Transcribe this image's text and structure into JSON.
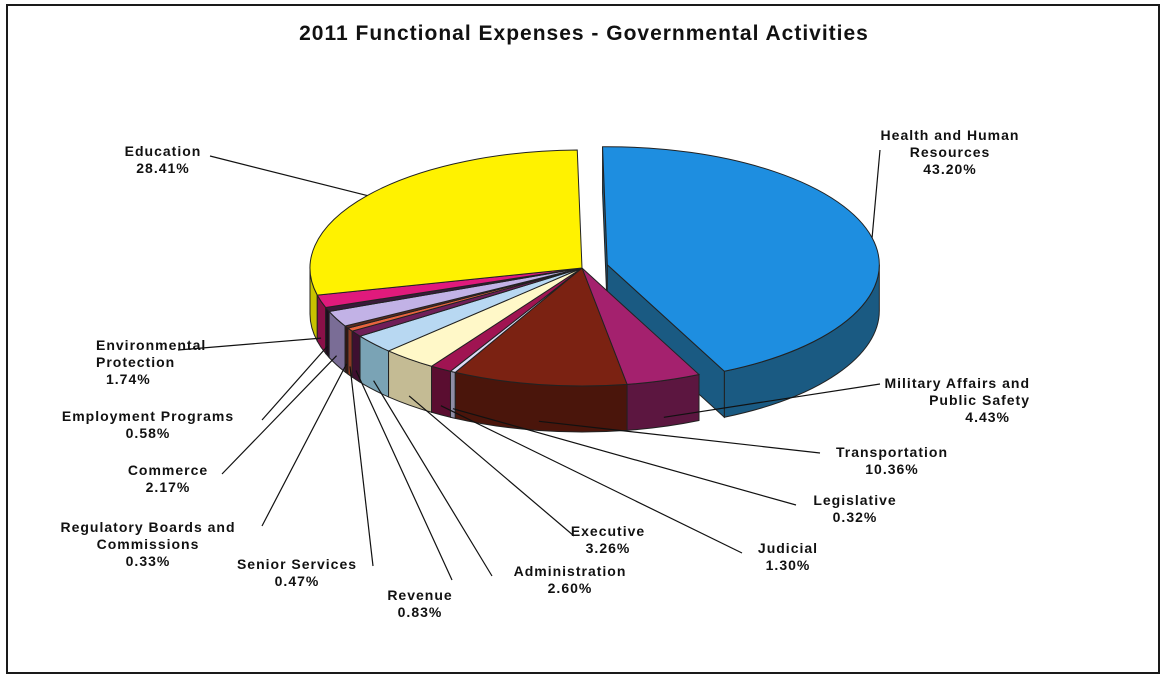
{
  "chart_data": {
    "type": "pie",
    "title": "2011 Functional Expenses - Governmental Activities",
    "slices": [
      {
        "name": "Health and Human Resources",
        "value": 43.2,
        "label": "43.20%",
        "color": "#1e8ee0",
        "side": "#1a5a82",
        "exploded": true
      },
      {
        "name": "Military Affairs and Public Safety",
        "value": 4.43,
        "label": "4.43%",
        "color": "#a4216e",
        "side": "#5c1640",
        "exploded": false
      },
      {
        "name": "Transportation",
        "value": 10.36,
        "label": "10.36%",
        "color": "#7b2212",
        "side": "#4a150b",
        "exploded": false
      },
      {
        "name": "Legislative",
        "value": 0.32,
        "label": "0.32%",
        "color": "#dcdcf6",
        "side": "#8e8ea6",
        "exploded": false
      },
      {
        "name": "Judicial",
        "value": 1.3,
        "label": "1.30%",
        "color": "#a01452",
        "side": "#5a0d30",
        "exploded": false
      },
      {
        "name": "Executive",
        "value": 3.26,
        "label": "3.26%",
        "color": "#fff8c8",
        "side": "#c4bb94",
        "exploded": false
      },
      {
        "name": "Administration",
        "value": 2.6,
        "label": "2.60%",
        "color": "#b8d8f2",
        "side": "#7aa3b5",
        "exploded": false
      },
      {
        "name": "Revenue",
        "value": 0.83,
        "label": "0.83%",
        "color": "#701e58",
        "side": "#3e1030",
        "exploded": false
      },
      {
        "name": "Senior Services",
        "value": 0.47,
        "label": "0.47%",
        "color": "#e8643e",
        "side": "#8c3a22",
        "exploded": false
      },
      {
        "name": "Regulatory Boards and Commissions",
        "value": 0.33,
        "label": "0.33%",
        "color": "#5a2a1e",
        "side": "#321610",
        "exploded": false
      },
      {
        "name": "Commerce",
        "value": 2.17,
        "label": "2.17%",
        "color": "#c2b2e6",
        "side": "#7a6d96",
        "exploded": false
      },
      {
        "name": "Employment Programs",
        "value": 0.58,
        "label": "0.58%",
        "color": "#3a1a3a",
        "side": "#1e0c1e",
        "exploded": false
      },
      {
        "name": "Environmental Protection",
        "value": 1.74,
        "label": "1.74%",
        "color": "#e01a7c",
        "side": "#8a1048",
        "exploded": false
      },
      {
        "name": "Education",
        "value": 28.41,
        "label": "28.41%",
        "color": "#fff200",
        "side": "#c8c200",
        "exploded": false
      }
    ]
  }
}
